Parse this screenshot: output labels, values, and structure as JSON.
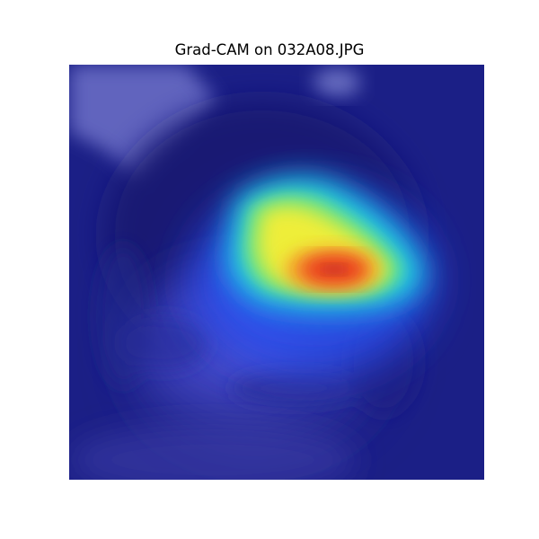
{
  "figure": {
    "title": "Grad-CAM on 032A08.JPG"
  },
  "heatmap": {
    "colormap": "jet",
    "colors": {
      "cold": "#1a1f8c",
      "mid": "#22d8e8",
      "warm": "#f2f03a",
      "hot": "#e83020"
    }
  }
}
